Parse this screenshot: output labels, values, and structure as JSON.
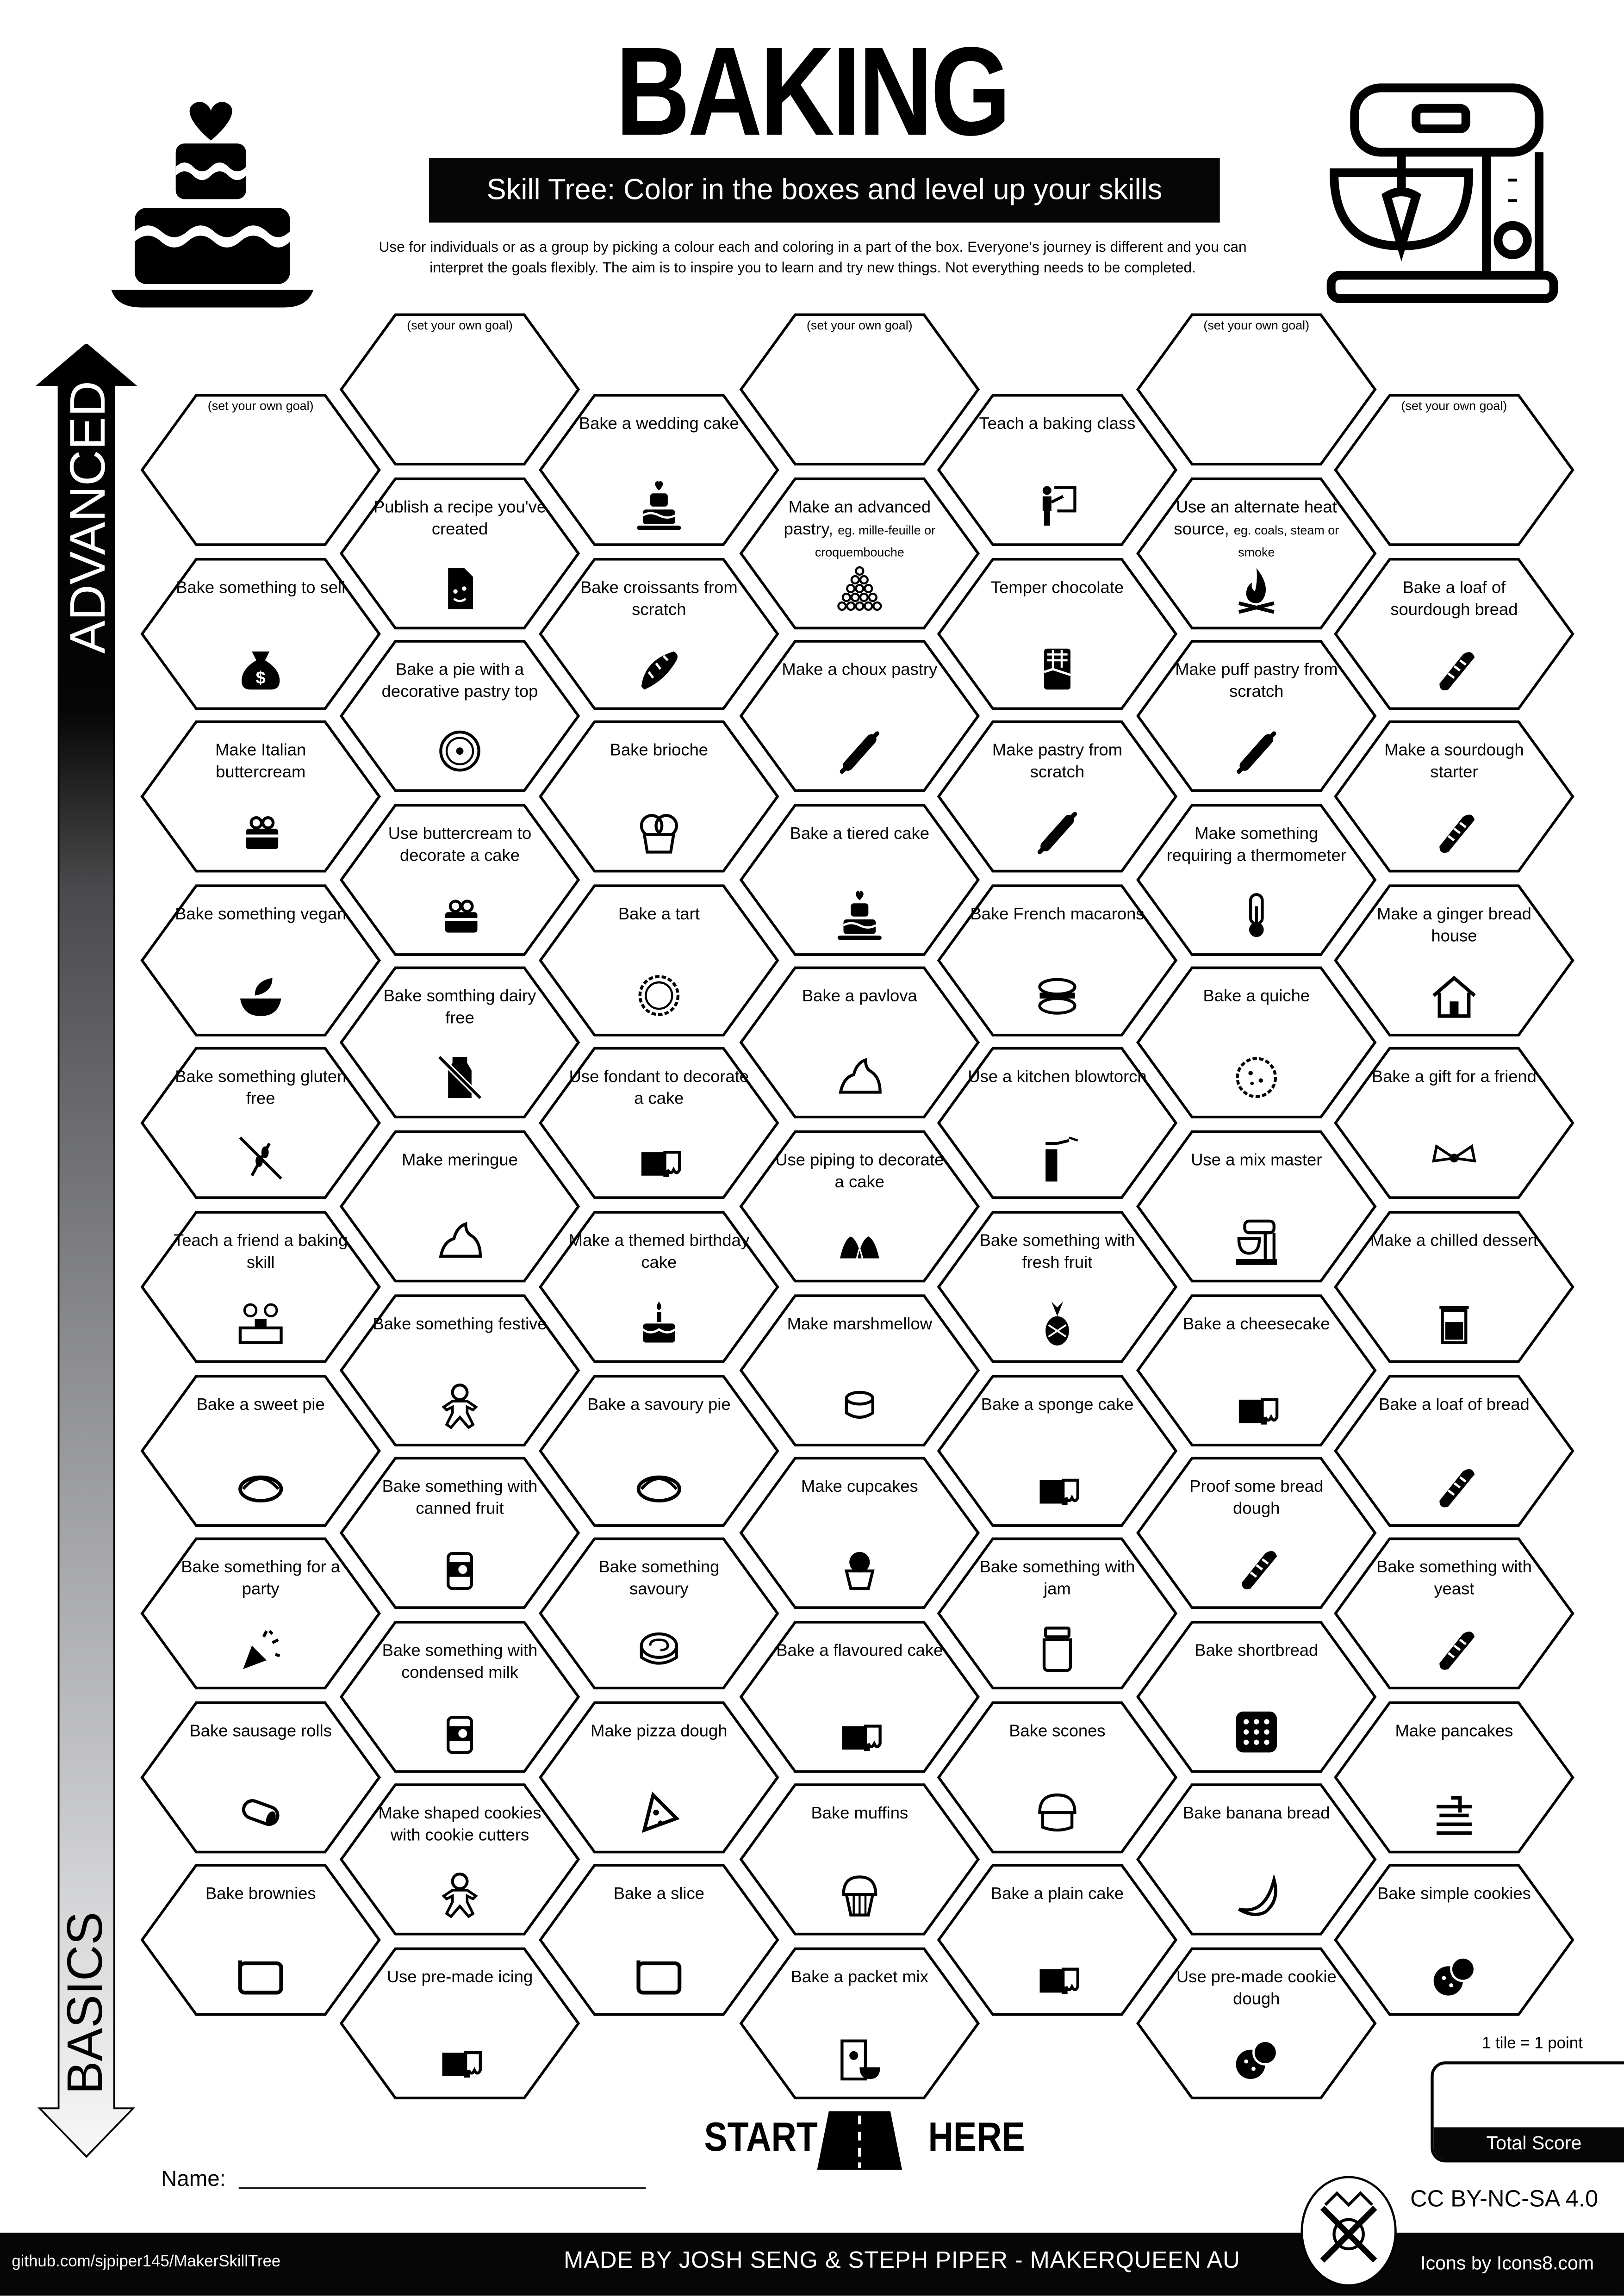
{
  "header": {
    "title": "BAKING",
    "subtitle": "Skill Tree:  Color in the boxes and level up your skills",
    "description_line1": "Use for individuals or as a group by picking a colour each and coloring in a part of the box.  Everyone's journey is different and you can",
    "description_line2": "interpret the goals flexibly.  The aim is to inspire you to learn and try new things. Not everything needs to be completed.",
    "left_icon": "wedding-cake-icon",
    "right_icon": "stand-mixer-icon"
  },
  "axis": {
    "top_label": "ADVANCED",
    "bottom_label": "BASICS"
  },
  "goal_placeholder": "(set your own goal)",
  "columns": [
    [
      {
        "goal": true
      },
      {
        "label": "Bake something to sell",
        "icon": "money-bag"
      },
      {
        "label": "Make Italian buttercream",
        "icon": "cake-slice"
      },
      {
        "label": "Bake something vegan",
        "icon": "vegan-bowl"
      },
      {
        "label": "Bake something gluten free",
        "icon": "no-gluten"
      },
      {
        "label": "Teach a friend a baking skill",
        "icon": "teaching"
      },
      {
        "label": "Bake a sweet pie",
        "icon": "pie"
      },
      {
        "label": "Bake something for a party",
        "icon": "party-popper"
      },
      {
        "label": "Bake sausage rolls",
        "icon": "sausage-roll"
      },
      {
        "label": "Bake brownies",
        "icon": "baking-tray"
      }
    ],
    [
      {
        "goal": true
      },
      {
        "label": "Publish a recipe you've created",
        "icon": "document"
      },
      {
        "label": "Bake a pie with a decorative pastry top",
        "icon": "decorated-pie"
      },
      {
        "label": "Use buttercream to decorate a cake",
        "icon": "cake-slice"
      },
      {
        "label": "Bake somthing dairy free",
        "icon": "no-milk"
      },
      {
        "label": "Make meringue",
        "icon": "meringue"
      },
      {
        "label": "Bake something festive",
        "icon": "gingerbread-man"
      },
      {
        "label": "Bake something with canned fruit",
        "icon": "can"
      },
      {
        "label": "Bake something with condensed milk",
        "icon": "can"
      },
      {
        "label": "Make shaped cookies with cookie cutters",
        "icon": "gingerbread-man"
      },
      {
        "label": "Use pre-made icing",
        "icon": "cake-piece"
      }
    ],
    [
      {
        "label": "Bake a wedding cake",
        "icon": "wedding-cake"
      },
      {
        "label": "Bake croissants from scratch",
        "icon": "croissant"
      },
      {
        "label": "Bake brioche",
        "icon": "brioche"
      },
      {
        "label": "Bake a tart",
        "icon": "tart"
      },
      {
        "label": "Use fondant to decorate a cake",
        "icon": "cake-piece"
      },
      {
        "label": "Make a themed birthday cake",
        "icon": "birthday-cake"
      },
      {
        "label": "Bake a savoury pie",
        "icon": "pie"
      },
      {
        "label": "Bake something savoury",
        "icon": "cinnamon-roll"
      },
      {
        "label": "Make pizza dough",
        "icon": "pizza"
      },
      {
        "label": "Bake a slice",
        "icon": "baking-tray"
      }
    ],
    [
      {
        "goal": true
      },
      {
        "label": "Make an advanced pastry,",
        "note": "eg. mille-feuille or croquembouche",
        "icon": "croquembouche"
      },
      {
        "label": "Make a choux pastry",
        "icon": "rolling-pin"
      },
      {
        "label": "Bake a tiered cake",
        "icon": "wedding-cake"
      },
      {
        "label": "Bake a pavlova",
        "icon": "meringue"
      },
      {
        "label": "Use piping to decorate a cake",
        "icon": "piping"
      },
      {
        "label": "Make marshmellow",
        "icon": "marshmallow"
      },
      {
        "label": "Make cupcakes",
        "icon": "cupcake"
      },
      {
        "label": "Bake a flavoured cake",
        "icon": "cake-piece"
      },
      {
        "label": "Bake muffins",
        "icon": "muffin"
      },
      {
        "label": "Bake a packet mix",
        "icon": "packet-mix"
      }
    ],
    [
      {
        "label": "Teach a baking class",
        "icon": "teacher"
      },
      {
        "label": "Temper chocolate",
        "icon": "chocolate-bar"
      },
      {
        "label": "Make pastry from scratch",
        "icon": "rolling-pin"
      },
      {
        "label": "Bake French macarons",
        "icon": "macaron"
      },
      {
        "label": "Use a kitchen blowtorch",
        "icon": "blowtorch"
      },
      {
        "label": "Bake something with fresh fruit",
        "icon": "pineapple"
      },
      {
        "label": "Bake a sponge cake",
        "icon": "cake-piece"
      },
      {
        "label": "Bake something with jam",
        "icon": "jam-jar"
      },
      {
        "label": "Bake scones",
        "icon": "scone"
      },
      {
        "label": "Bake a plain cake",
        "icon": "cake-piece"
      }
    ],
    [
      {
        "goal": true
      },
      {
        "label": "Use an alternate heat source,",
        "note": "eg. coals, steam or smoke",
        "icon": "campfire"
      },
      {
        "label": "Make puff pastry from scratch",
        "icon": "rolling-pin"
      },
      {
        "label": "Make something requiring a thermometer",
        "icon": "thermometer"
      },
      {
        "label": "Bake a quiche",
        "icon": "quiche"
      },
      {
        "label": "Use a mix master",
        "icon": "stand-mixer"
      },
      {
        "label": "Bake a cheesecake",
        "icon": "cake-piece"
      },
      {
        "label": "Proof some bread dough",
        "icon": "bread"
      },
      {
        "label": "Bake shortbread",
        "icon": "shortbread"
      },
      {
        "label": "Bake banana bread",
        "icon": "banana"
      },
      {
        "label": "Use pre-made cookie dough",
        "icon": "cookies"
      }
    ],
    [
      {
        "goal": true
      },
      {
        "label": "Bake a loaf of sourdough bread",
        "icon": "bread"
      },
      {
        "label": "Make a sourdough starter",
        "icon": "bread"
      },
      {
        "label": "Make a ginger bread house",
        "icon": "gingerbread-house"
      },
      {
        "label": "Bake a gift for a friend",
        "icon": "gift-bow"
      },
      {
        "label": "Make a chilled dessert",
        "icon": "dessert-jar"
      },
      {
        "label": "Bake a loaf of bread",
        "icon": "bread"
      },
      {
        "label": "Bake something with yeast",
        "icon": "bread"
      },
      {
        "label": "Make pancakes",
        "icon": "pancakes"
      },
      {
        "label": "Bake simple cookies",
        "icon": "cookies"
      }
    ]
  ],
  "start": {
    "left": "START",
    "right": "HERE",
    "icon": "road-icon"
  },
  "name_label": "Name:",
  "score": {
    "rule": "1 tile = 1 point",
    "label": "Total Score"
  },
  "license": "CC BY-NC-SA 4.0",
  "footer": {
    "github": "github.com/sjpiper145/MakerSkillTree",
    "credits": "MADE BY JOSH SENG & STEPH PIPER  -  MAKERQUEEN AU",
    "icons_credit": "Icons by Icons8.com",
    "logo": "makerqueen-logo"
  },
  "colors": {
    "ink": "#060607",
    "paper": "#ffffff"
  }
}
